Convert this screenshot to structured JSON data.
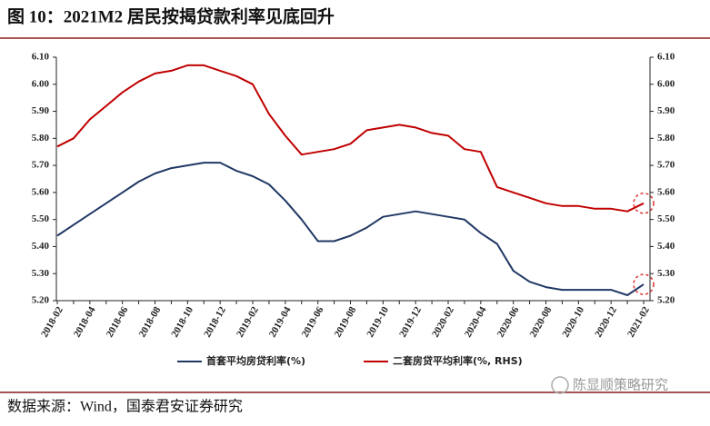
{
  "chart_data": {
    "type": "line",
    "title": "图 10：2021M2 居民按揭贷款利率见底回升",
    "source": "数据来源：Wind，国泰君安证券研究",
    "watermark": "陈显顺策略研究",
    "categories": [
      "2018-02",
      null,
      "2018-04",
      null,
      "2018-06",
      null,
      "2018-08",
      null,
      "2018-10",
      null,
      "2018-12",
      null,
      "2019-02",
      null,
      "2019-04",
      null,
      "2019-06",
      null,
      "2019-08",
      null,
      "2019-10",
      null,
      "2019-12",
      null,
      "2020-02",
      null,
      "2020-04",
      null,
      "2020-06",
      null,
      "2020-08",
      null,
      "2020-10",
      null,
      "2020-12",
      null,
      "2021-02"
    ],
    "series": [
      {
        "name": "首套平均房贷利率(%)",
        "color": "#203864",
        "axis": "y",
        "values": [
          5.44,
          5.48,
          5.52,
          5.56,
          5.6,
          5.64,
          5.67,
          5.69,
          5.7,
          5.71,
          5.71,
          5.68,
          5.66,
          5.63,
          5.57,
          5.5,
          5.42,
          5.42,
          5.44,
          5.47,
          5.51,
          5.52,
          5.53,
          5.52,
          5.51,
          5.5,
          5.45,
          5.41,
          5.31,
          5.27,
          5.25,
          5.24,
          5.24,
          5.24,
          5.24,
          5.22,
          5.26
        ]
      },
      {
        "name": "二套房贷平均利率(%, RHS)",
        "color": "#c00000",
        "axis": "y2",
        "values": [
          5.77,
          5.8,
          5.87,
          5.92,
          5.97,
          6.01,
          6.04,
          6.05,
          6.07,
          6.07,
          6.05,
          6.03,
          6.0,
          5.89,
          5.81,
          5.74,
          5.75,
          5.76,
          5.78,
          5.83,
          5.84,
          5.85,
          5.84,
          5.82,
          5.81,
          5.76,
          5.75,
          5.62,
          5.6,
          5.58,
          5.56,
          5.55,
          5.55,
          5.54,
          5.54,
          5.53,
          5.56
        ]
      }
    ],
    "ylim": [
      5.2,
      6.1
    ],
    "yticks": [
      {
        "value": 5.2,
        "label": "5.20"
      },
      {
        "value": 5.3,
        "label": "5.30"
      },
      {
        "value": 5.4,
        "label": "5.40"
      },
      {
        "value": 5.5,
        "label": "5.50"
      },
      {
        "value": 5.6,
        "label": "5.60"
      },
      {
        "value": 5.7,
        "label": "5.70"
      },
      {
        "value": 5.8,
        "label": "5.80"
      },
      {
        "value": 5.9,
        "label": "5.90"
      },
      {
        "value": 6.0,
        "label": "6.00"
      },
      {
        "value": 6.1,
        "label": "6.10"
      }
    ],
    "y2lim": [
      5.2,
      6.1
    ],
    "y2ticks": [
      {
        "value": 5.2,
        "label": "5.20"
      },
      {
        "value": 5.3,
        "label": "5.30"
      },
      {
        "value": 5.4,
        "label": "5.40"
      },
      {
        "value": 5.5,
        "label": "5.50"
      },
      {
        "value": 5.6,
        "label": "5.60"
      },
      {
        "value": 5.7,
        "label": "5.70"
      },
      {
        "value": 5.8,
        "label": "5.80"
      },
      {
        "value": 5.9,
        "label": "5.90"
      },
      {
        "value": 6.0,
        "label": "6.00"
      },
      {
        "value": 6.1,
        "label": "6.10"
      }
    ],
    "grid": false
  }
}
